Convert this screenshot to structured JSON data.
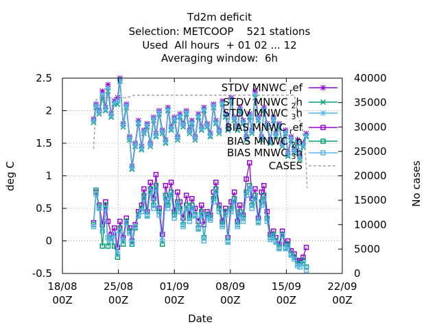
{
  "chart_data": {
    "type": "line",
    "title_lines": [
      "Td2m deficit",
      "Selection: METCOOP    521 stations",
      "Used  All hours  + 01 02 ... 12",
      "Averaging window:  6h"
    ],
    "xlabel": "Date",
    "ylabel": "deg C",
    "y2label": "No cases",
    "xlim": [
      "2016-08-18 00Z",
      "2016-09-22 00Z"
    ],
    "x_ticks": [
      "18/08\n00Z",
      "25/08\n00Z",
      "01/09\n00Z",
      "08/09\n00Z",
      "15/09\n00Z",
      "22/09\n00Z"
    ],
    "ylim": [
      -0.5,
      2.5
    ],
    "y_ticks": [
      "-0.5",
      "0",
      "0.5",
      "1",
      "1.5",
      "2",
      "2.5"
    ],
    "y2lim": [
      0,
      40000
    ],
    "y2_ticks": [
      "0",
      "5000",
      "10000",
      "15000",
      "20000",
      "25000",
      "30000",
      "35000",
      "40000"
    ],
    "grid": true,
    "legend_position": "top-right",
    "series": [
      {
        "name": "STDV MNWC_ref",
        "legend": "STDV MNWC ref",
        "sub": "r",
        "color": "#9400d3",
        "marker": "star",
        "x": [
          21.9,
          22.2,
          22.6,
          23,
          23.4,
          23.7,
          24.1,
          24.5,
          24.9,
          25.2,
          25.6,
          26,
          26.4,
          26.7,
          27.1,
          27.5,
          27.9,
          28.2,
          28.6,
          29,
          29.4,
          29.7,
          30.1,
          30.5,
          30.9,
          31.2,
          31.6,
          32,
          32.4,
          32.7,
          33.1,
          33.5,
          33.9,
          34.2,
          34.6,
          35,
          35.4,
          35.7,
          36.1,
          36.5,
          36.9,
          37.2,
          37.6,
          38,
          38.4,
          38.7,
          39.1,
          39.5,
          39.9,
          40.2,
          40.6,
          41,
          41.4,
          41.7,
          42.1,
          42.5,
          42.9,
          43.2,
          43.6,
          44,
          44.4,
          44.7,
          45.1,
          45.5,
          45.9,
          46.2,
          46.6,
          47,
          47.4,
          47.7,
          48.1,
          48.5
        ],
        "values": [
          1.87,
          2.1,
          2.0,
          2.3,
          2.05,
          2.4,
          1.95,
          2.15,
          2.2,
          2.5,
          1.8,
          2.1,
          1.6,
          1.15,
          1.5,
          1.85,
          1.45,
          1.7,
          1.8,
          1.5,
          1.9,
          1.65,
          2.0,
          1.7,
          1.55,
          2.05,
          1.75,
          1.9,
          1.6,
          1.95,
          1.8,
          2.0,
          1.7,
          1.85,
          1.6,
          1.95,
          1.75,
          2.05,
          1.8,
          1.65,
          2.1,
          1.85,
          1.7,
          2.15,
          1.95,
          1.75,
          2.2,
          1.9,
          1.75,
          2.05,
          1.85,
          1.6,
          1.95,
          1.7,
          2.3,
          1.9,
          1.6,
          2.05,
          1.8,
          1.55,
          1.9,
          1.65,
          1.8,
          1.5,
          1.7,
          1.35,
          1.6,
          1.4,
          1.55,
          1.3,
          1.5,
          1.65
        ]
      },
      {
        "name": "STDV MNWC_2h",
        "legend": "STDV MNWC 2h",
        "sub": "2",
        "color": "#009e73",
        "marker": "x",
        "x": [
          21.9,
          22.2,
          22.6,
          23,
          23.4,
          23.7,
          24.1,
          24.5,
          24.9,
          25.2,
          25.6,
          26,
          26.4,
          26.7,
          27.1,
          27.5,
          27.9,
          28.2,
          28.6,
          29,
          29.4,
          29.7,
          30.1,
          30.5,
          30.9,
          31.2,
          31.6,
          32,
          32.4,
          32.7,
          33.1,
          33.5,
          33.9,
          34.2,
          34.6,
          35,
          35.4,
          35.7,
          36.1,
          36.5,
          36.9,
          37.2,
          37.6,
          38,
          38.4,
          38.7,
          39.1,
          39.5,
          39.9,
          40.2,
          40.6,
          41,
          41.4,
          41.7,
          42.1,
          42.5,
          42.9,
          43.2,
          43.6,
          44,
          44.4,
          44.7,
          45.1,
          45.5,
          45.9,
          46.2,
          46.6,
          47,
          47.4,
          47.7,
          48.1,
          48.5
        ],
        "values": [
          1.82,
          2.05,
          1.95,
          2.2,
          2.0,
          2.3,
          1.9,
          2.1,
          2.1,
          2.45,
          1.75,
          2.05,
          1.55,
          1.1,
          1.45,
          1.8,
          1.4,
          1.65,
          1.75,
          1.45,
          1.85,
          1.6,
          1.95,
          1.65,
          1.5,
          2.0,
          1.7,
          1.85,
          1.55,
          1.9,
          1.75,
          1.95,
          1.65,
          1.8,
          1.55,
          1.9,
          1.7,
          2.0,
          1.75,
          1.6,
          2.05,
          1.8,
          1.65,
          2.1,
          1.9,
          1.7,
          2.15,
          1.85,
          1.7,
          2.0,
          1.8,
          1.55,
          1.9,
          1.65,
          2.2,
          1.85,
          1.55,
          2.0,
          1.75,
          1.5,
          1.85,
          1.6,
          1.75,
          1.45,
          1.65,
          1.3,
          1.55,
          1.35,
          1.5,
          1.25,
          1.45,
          1.6
        ]
      },
      {
        "name": "STDV MNWC_3h",
        "legend": "STDV MNWC 3h",
        "sub": "3",
        "color": "#56b4e9",
        "marker": "star",
        "x": [
          21.9,
          22.2,
          22.6,
          23,
          23.4,
          23.7,
          24.1,
          24.5,
          24.9,
          25.2,
          25.6,
          26,
          26.4,
          26.7,
          27.1,
          27.5,
          27.9,
          28.2,
          28.6,
          29,
          29.4,
          29.7,
          30.1,
          30.5,
          30.9,
          31.2,
          31.6,
          32,
          32.4,
          32.7,
          33.1,
          33.5,
          33.9,
          34.2,
          34.6,
          35,
          35.4,
          35.7,
          36.1,
          36.5,
          36.9,
          37.2,
          37.6,
          38,
          38.4,
          38.7,
          39.1,
          39.5,
          39.9,
          40.2,
          40.6,
          41,
          41.4,
          41.7,
          42.1,
          42.5,
          42.9,
          43.2,
          43.6,
          44,
          44.4,
          44.7,
          45.1,
          45.5,
          45.9,
          46.2,
          46.6,
          47,
          47.4,
          47.7,
          48.1,
          48.5
        ],
        "values": [
          1.85,
          2.08,
          1.98,
          2.25,
          2.02,
          2.35,
          1.92,
          2.12,
          2.15,
          2.48,
          1.78,
          2.08,
          1.58,
          1.12,
          1.48,
          1.82,
          1.42,
          1.68,
          1.78,
          1.48,
          1.88,
          1.62,
          1.98,
          1.68,
          1.52,
          2.02,
          1.72,
          1.88,
          1.58,
          1.92,
          1.78,
          1.98,
          1.68,
          1.82,
          1.58,
          1.92,
          1.72,
          2.02,
          1.78,
          1.62,
          2.08,
          1.82,
          1.68,
          2.12,
          1.92,
          1.72,
          2.18,
          1.88,
          1.72,
          2.02,
          1.82,
          1.58,
          1.92,
          1.68,
          2.25,
          1.88,
          1.58,
          2.02,
          1.78,
          1.52,
          1.88,
          1.62,
          1.78,
          1.48,
          1.68,
          1.32,
          1.58,
          1.38,
          1.52,
          1.28,
          1.48,
          1.62
        ]
      },
      {
        "name": "BIAS MNWC_ref",
        "legend": "BIAS MNWC ref",
        "sub": "r",
        "color": "#9400d3",
        "marker": "square",
        "x": [
          21.9,
          22.2,
          22.6,
          23,
          23.4,
          23.7,
          24.1,
          24.5,
          24.9,
          25.2,
          25.6,
          26,
          26.4,
          26.7,
          27.1,
          27.5,
          27.9,
          28.2,
          28.6,
          29,
          29.4,
          29.7,
          30.1,
          30.5,
          30.9,
          31.2,
          31.6,
          32,
          32.4,
          32.7,
          33.1,
          33.5,
          33.9,
          34.2,
          34.6,
          35,
          35.4,
          35.7,
          36.1,
          36.5,
          36.9,
          37.2,
          37.6,
          38,
          38.4,
          38.7,
          39.1,
          39.5,
          39.9,
          40.2,
          40.6,
          41,
          41.4,
          41.7,
          42.1,
          42.5,
          42.9,
          43.2,
          43.6,
          44,
          44.4,
          44.7,
          45.1,
          45.5,
          45.9,
          46.2,
          46.6,
          47,
          47.4,
          47.7,
          48.1,
          48.5
        ],
        "values": [
          0.28,
          0.75,
          0.55,
          0.25,
          0.6,
          0.3,
          0.1,
          0.2,
          -0.1,
          0.3,
          0.05,
          0.35,
          0.2,
          0.0,
          0.25,
          0.45,
          0.55,
          0.8,
          0.45,
          0.9,
          0.65,
          1.02,
          0.5,
          0.1,
          0.85,
          0.65,
          0.9,
          0.45,
          0.75,
          0.6,
          0.35,
          0.7,
          0.4,
          0.65,
          0.5,
          0.3,
          0.55,
          0.25,
          0.45,
          0.4,
          0.75,
          0.9,
          0.55,
          0.3,
          0.5,
          0.05,
          0.6,
          0.75,
          0.3,
          0.55,
          0.4,
          0.95,
          1.2,
          0.65,
          0.8,
          0.35,
          0.75,
          0.85,
          0.45,
          0.1,
          0.15,
          0.05,
          -0.05,
          0.15,
          -0.05,
          0.0,
          -0.15,
          -0.2,
          -0.3,
          -0.3,
          -0.25,
          -0.1
        ]
      },
      {
        "name": "BIAS MNWC_2h",
        "legend": "BIAS MNWC 2h",
        "sub": "2",
        "color": "#009e73",
        "marker": "square",
        "x": [
          21.9,
          22.2,
          22.6,
          23,
          23.4,
          23.7,
          24.1,
          24.5,
          24.9,
          25.2,
          25.6,
          26,
          26.4,
          26.7,
          27.1,
          27.5,
          27.9,
          28.2,
          28.6,
          29,
          29.4,
          29.7,
          30.1,
          30.5,
          30.9,
          31.2,
          31.6,
          32,
          32.4,
          32.7,
          33.1,
          33.5,
          33.9,
          34.2,
          34.6,
          35,
          35.4,
          35.7,
          36.1,
          36.5,
          36.9,
          37.2,
          37.6,
          38,
          38.4,
          38.7,
          39.1,
          39.5,
          39.9,
          40.2,
          40.6,
          41,
          41.4,
          41.7,
          42.1,
          42.5,
          42.9,
          43.2,
          43.6,
          44,
          44.4,
          44.7,
          45.1,
          45.5,
          45.9,
          46.2,
          46.6,
          47,
          47.4,
          47.7,
          48.1,
          48.5
        ],
        "values": [
          0.25,
          0.78,
          0.52,
          -0.08,
          0.55,
          -0.08,
          0.05,
          -0.08,
          -0.25,
          0.2,
          -0.05,
          0.3,
          0.15,
          -0.05,
          0.2,
          0.4,
          0.5,
          0.7,
          0.4,
          0.8,
          0.55,
          0.85,
          0.45,
          -0.05,
          0.7,
          0.55,
          0.75,
          0.4,
          0.6,
          0.5,
          0.25,
          0.55,
          0.35,
          0.55,
          0.4,
          0.2,
          0.45,
          0.05,
          0.4,
          0.35,
          0.65,
          0.8,
          0.5,
          0.25,
          0.45,
          0.0,
          0.5,
          0.65,
          0.25,
          0.45,
          0.35,
          0.75,
          0.85,
          0.55,
          0.7,
          0.3,
          0.6,
          0.7,
          0.35,
          0.05,
          0.1,
          0.0,
          -0.1,
          0.1,
          -0.1,
          -0.05,
          -0.2,
          -0.25,
          -0.35,
          -0.35,
          -0.3,
          -0.4
        ]
      },
      {
        "name": "BIAS MNWC_3h",
        "legend": "BIAS MNWC 3h",
        "sub": "3",
        "color": "#56b4e9",
        "marker": "square",
        "x": [
          21.9,
          22.2,
          22.6,
          23,
          23.4,
          23.7,
          24.1,
          24.5,
          24.9,
          25.2,
          25.6,
          26,
          26.4,
          26.7,
          27.1,
          27.5,
          27.9,
          28.2,
          28.6,
          29,
          29.4,
          29.7,
          30.1,
          30.5,
          30.9,
          31.2,
          31.6,
          32,
          32.4,
          32.7,
          33.1,
          33.5,
          33.9,
          34.2,
          34.6,
          35,
          35.4,
          35.7,
          36.1,
          36.5,
          36.9,
          37.2,
          37.6,
          38,
          38.4,
          38.7,
          39.1,
          39.5,
          39.9,
          40.2,
          40.6,
          41,
          41.4,
          41.7,
          42.1,
          42.5,
          42.9,
          43.2,
          43.6,
          44,
          44.4,
          44.7,
          45.1,
          45.5,
          45.9,
          46.2,
          46.6,
          47,
          47.4,
          47.7,
          48.1,
          48.5
        ],
        "values": [
          0.22,
          0.72,
          0.5,
          0.15,
          0.5,
          0.05,
          0.0,
          0.1,
          -0.2,
          0.15,
          0.0,
          0.28,
          0.12,
          -0.02,
          0.22,
          0.38,
          0.45,
          0.65,
          0.38,
          0.75,
          0.5,
          0.8,
          0.4,
          0.0,
          0.65,
          0.5,
          0.7,
          0.35,
          0.55,
          0.45,
          0.22,
          0.5,
          0.3,
          0.5,
          0.38,
          0.18,
          0.4,
          0.0,
          0.38,
          0.32,
          0.6,
          0.75,
          0.45,
          0.22,
          0.4,
          -0.02,
          0.45,
          0.6,
          0.22,
          0.4,
          0.3,
          0.7,
          0.8,
          0.5,
          0.65,
          0.28,
          0.55,
          0.65,
          0.3,
          0.02,
          0.08,
          -0.02,
          -0.12,
          0.08,
          -0.12,
          -0.08,
          -0.22,
          -0.28,
          -0.38,
          -0.4,
          -0.35,
          -0.45
        ]
      },
      {
        "name": "CASES",
        "legend": "CASES",
        "sub": "",
        "color": "#a0a0a0",
        "marker": "none",
        "axis": "y2",
        "x": [
          21.9,
          22.2,
          22.6,
          23,
          24,
          25,
          26,
          27,
          28,
          29,
          30,
          31,
          32,
          33,
          34,
          35,
          36,
          37,
          38,
          39,
          40,
          41,
          42,
          43,
          44,
          45,
          46,
          47,
          47.5,
          48,
          48.3,
          48.5,
          48.6
        ],
        "values": [
          25500,
          35500,
          36000,
          36000,
          36000,
          36000,
          36000,
          36500,
          36500,
          36500,
          36500,
          36500,
          36500,
          36500,
          36500,
          36500,
          36500,
          36500,
          36500,
          36500,
          36500,
          36500,
          36500,
          36500,
          36500,
          36500,
          36500,
          36500,
          32000,
          30000,
          26000,
          22000,
          17500
        ]
      }
    ]
  }
}
